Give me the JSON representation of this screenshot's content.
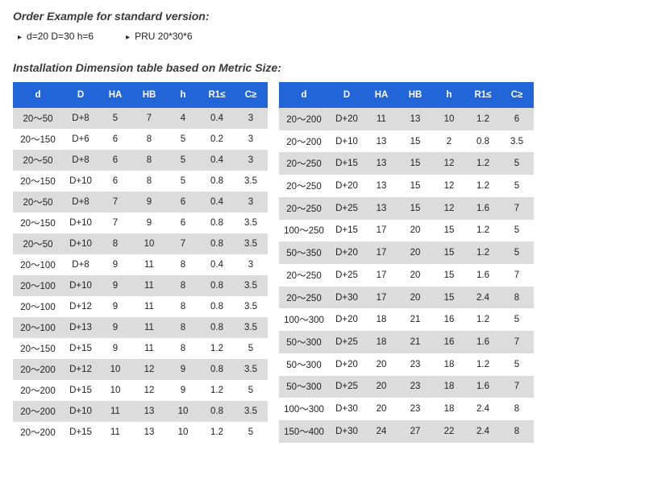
{
  "title1": "Order Example for standard version:",
  "example": {
    "left": "d=20 D=30 h=6",
    "right": "PRU 20*30*6"
  },
  "title2": "Installation Dimension table based on Metric Size:",
  "headers": [
    "d",
    "D",
    "HA",
    "HB",
    "h",
    "R1≤",
    "C≥"
  ],
  "left": [
    [
      "20～50",
      "D+8",
      "5",
      "7",
      "4",
      "0.4",
      "3"
    ],
    [
      "20～150",
      "D+6",
      "6",
      "8",
      "5",
      "0.2",
      "3"
    ],
    [
      "20～50",
      "D+8",
      "6",
      "8",
      "5",
      "0.4",
      "3"
    ],
    [
      "20～150",
      "D+10",
      "6",
      "8",
      "5",
      "0.8",
      "3.5"
    ],
    [
      "20～50",
      "D+8",
      "7",
      "9",
      "6",
      "0.4",
      "3"
    ],
    [
      "20～150",
      "D+10",
      "7",
      "9",
      "6",
      "0.8",
      "3.5"
    ],
    [
      "20～50",
      "D+10",
      "8",
      "10",
      "7",
      "0.8",
      "3.5"
    ],
    [
      "20～100",
      "D+8",
      "9",
      "11",
      "8",
      "0.4",
      "3"
    ],
    [
      "20～100",
      "D+10",
      "9",
      "11",
      "8",
      "0.8",
      "3.5"
    ],
    [
      "20～100",
      "D+12",
      "9",
      "11",
      "8",
      "0.8",
      "3.5"
    ],
    [
      "20～100",
      "D+13",
      "9",
      "11",
      "8",
      "0.8",
      "3.5"
    ],
    [
      "20～150",
      "D+15",
      "9",
      "11",
      "8",
      "1.2",
      "5"
    ],
    [
      "20～200",
      "D+12",
      "10",
      "12",
      "9",
      "0.8",
      "3.5"
    ],
    [
      "20～200",
      "D+15",
      "10",
      "12",
      "9",
      "1.2",
      "5"
    ],
    [
      "20～200",
      "D+10",
      "11",
      "13",
      "10",
      "0.8",
      "3.5"
    ],
    [
      "20～200",
      "D+15",
      "11",
      "13",
      "10",
      "1.2",
      "5"
    ]
  ],
  "right": [
    [
      "20～200",
      "D+20",
      "11",
      "13",
      "10",
      "1.2",
      "6"
    ],
    [
      "20～200",
      "D+10",
      "13",
      "15",
      "2",
      "0.8",
      "3.5"
    ],
    [
      "20～250",
      "D+15",
      "13",
      "15",
      "12",
      "1.2",
      "5"
    ],
    [
      "20～250",
      "D+20",
      "13",
      "15",
      "12",
      "1.2",
      "5"
    ],
    [
      "20～250",
      "D+25",
      "13",
      "15",
      "12",
      "1.6",
      "7"
    ],
    [
      "100～250",
      "D+15",
      "17",
      "20",
      "15",
      "1.2",
      "5"
    ],
    [
      "50～350",
      "D+20",
      "17",
      "20",
      "15",
      "1.2",
      "5"
    ],
    [
      "20～250",
      "D+25",
      "17",
      "20",
      "15",
      "1.6",
      "7"
    ],
    [
      "20～250",
      "D+30",
      "17",
      "20",
      "15",
      "2.4",
      "8"
    ],
    [
      "100～300",
      "D+20",
      "18",
      "21",
      "16",
      "1.2",
      "5"
    ],
    [
      "50～300",
      "D+25",
      "18",
      "21",
      "16",
      "1.6",
      "7"
    ],
    [
      "50～300",
      "D+20",
      "20",
      "23",
      "18",
      "1.2",
      "5"
    ],
    [
      "50～300",
      "D+25",
      "20",
      "23",
      "18",
      "1.6",
      "7"
    ],
    [
      "100～300",
      "D+30",
      "20",
      "23",
      "18",
      "2.4",
      "8"
    ],
    [
      "150～400",
      "D+30",
      "24",
      "27",
      "22",
      "2.4",
      "8"
    ]
  ],
  "colors": {
    "header_bg": "#2165d8",
    "header_fg": "#ffffff",
    "row_odd_bg": "#dcdcdc",
    "row_even_bg": "#ffffff"
  }
}
